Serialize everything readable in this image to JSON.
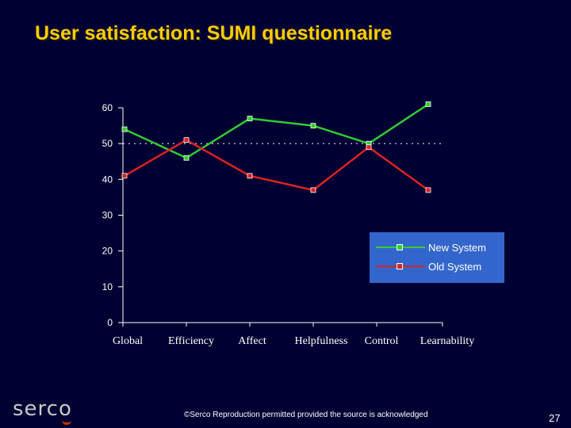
{
  "slide": {
    "title": "User satisfaction: SUMI questionnaire",
    "footer": "©Serco Reproduction permitted provided the source is acknowledged",
    "page_number": "27",
    "logo_text": "serco"
  },
  "colors": {
    "background": "#000033",
    "title": "#ffcc00",
    "legend_background": "#3366cc",
    "new_system": "#33cc33",
    "old_system": "#dd2222",
    "reference_line": "#ffffff"
  },
  "chart_data": {
    "type": "line",
    "title": "",
    "xlabel": "",
    "ylabel": "",
    "categories": [
      "Global",
      "Efficiency",
      "Affect",
      "Helpfulness",
      "Control",
      "Learnability"
    ],
    "series": [
      {
        "name": "New System",
        "values": [
          54,
          46,
          57,
          55,
          50,
          61
        ]
      },
      {
        "name": "Old System",
        "values": [
          41,
          51,
          41,
          37,
          49,
          37
        ]
      }
    ],
    "ylim": [
      0,
      60
    ],
    "yticks": [
      0,
      10,
      20,
      30,
      40,
      50,
      60
    ],
    "reference_line": 50,
    "grid": false,
    "legend_position": "right"
  }
}
